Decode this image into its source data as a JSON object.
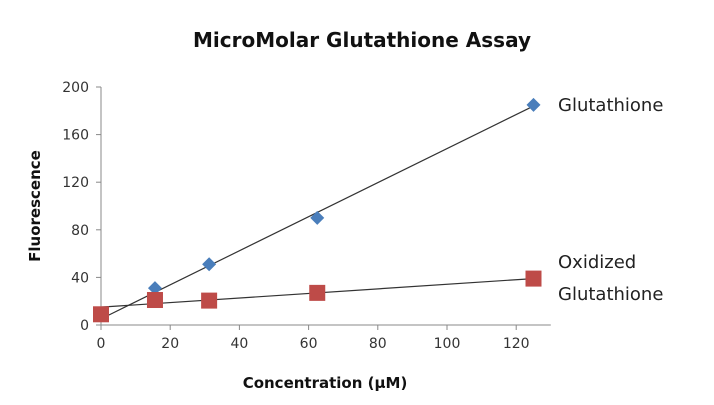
{
  "chart_data": {
    "type": "scatter",
    "title": "MicroMolar Glutathione Assay",
    "xlabel": "Concentration (μM)",
    "ylabel": "Fluorescence",
    "xlim": [
      0,
      130
    ],
    "ylim": [
      0,
      200
    ],
    "xticks": [
      0,
      20,
      40,
      60,
      80,
      100,
      120
    ],
    "yticks": [
      0,
      40,
      80,
      120,
      160,
      200
    ],
    "grid": false,
    "legend": "inline labels at right end of series",
    "series": [
      {
        "name": "Glutathione",
        "label_lines": [
          "Glutathione"
        ],
        "marker": "diamond",
        "color": "#4a7ebb",
        "x": [
          15.6,
          31.25,
          62.5,
          125
        ],
        "y": [
          31,
          51,
          90,
          185
        ],
        "trendline": {
          "x": [
            2,
            125
          ],
          "y": [
            8,
            184
          ]
        }
      },
      {
        "name": "Oxidized Glutathione",
        "label_lines": [
          "Oxidized",
          "Glutathione"
        ],
        "marker": "square",
        "color": "#be4b48",
        "x": [
          0,
          15.6,
          31.25,
          62.5,
          125
        ],
        "y": [
          9,
          21,
          20.5,
          27,
          39
        ],
        "trendline": {
          "x": [
            0,
            125
          ],
          "y": [
            15,
            39
          ]
        }
      }
    ]
  }
}
